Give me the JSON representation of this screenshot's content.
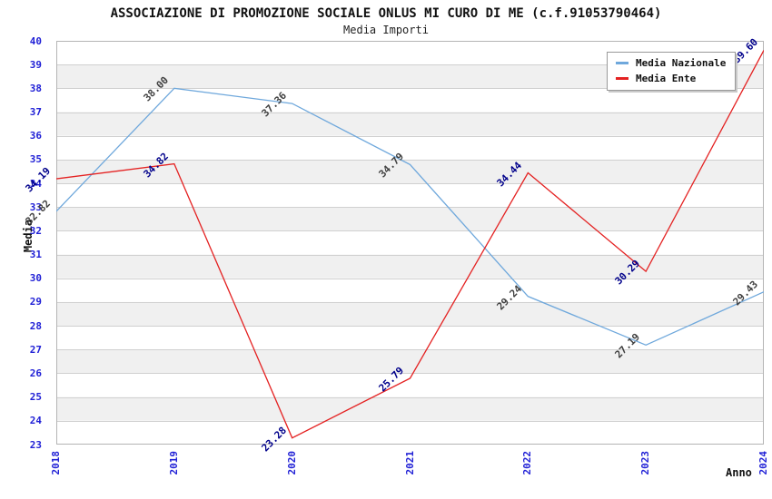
{
  "chart_data": {
    "type": "line",
    "title": "ASSOCIAZIONE DI PROMOZIONE SOCIALE ONLUS MI CURO DI ME (c.f.91053790464)",
    "subtitle": "Media Importi",
    "xlabel": "Anno",
    "ylabel": "Media",
    "x": [
      2018,
      2019,
      2020,
      2021,
      2022,
      2023,
      2024
    ],
    "ylim": [
      23,
      40
    ],
    "ytick_step": 1,
    "grid": true,
    "banded_background": true,
    "legend_position": "top-right",
    "series": [
      {
        "name": "Media Nazionale",
        "color": "#6FA8DC",
        "label_color": "#404040",
        "values": [
          32.82,
          38.0,
          37.36,
          34.79,
          29.24,
          27.19,
          29.43
        ]
      },
      {
        "name": "Media Ente",
        "color": "#E42222",
        "label_color": "#00008B",
        "values": [
          34.19,
          34.82,
          23.28,
          25.79,
          34.44,
          30.29,
          39.6
        ]
      }
    ],
    "colors": {
      "axis_tick": "#2121D6",
      "grid": "#D0D0D0",
      "band": "#F0F0F0",
      "plot_border": "#B4B4B4",
      "title": "#111111"
    }
  }
}
